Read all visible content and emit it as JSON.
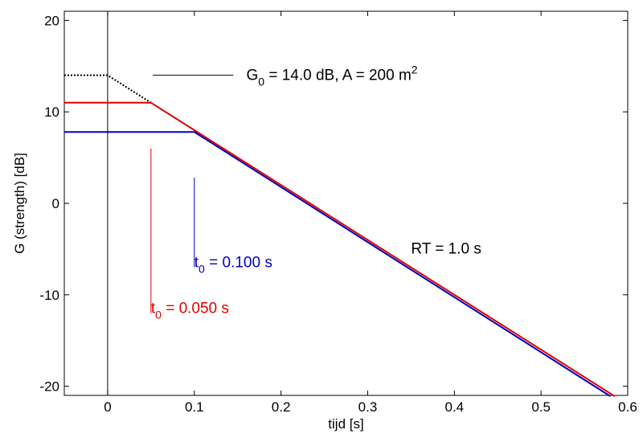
{
  "chart_data": {
    "type": "line",
    "title": "",
    "xlabel": "tijd  [s]",
    "ylabel": "G (strength) [dB]",
    "xlim": [
      -0.05,
      0.6
    ],
    "ylim": [
      -21,
      21
    ],
    "grid": false,
    "x_ticks": [
      0,
      0.1,
      0.2,
      0.3,
      0.4,
      0.5,
      0.6
    ],
    "x_tick_labels": [
      "0",
      "0.1",
      "0.2",
      "0.3",
      "0.4",
      "0.5",
      "0.6"
    ],
    "y_ticks": [
      -20,
      -10,
      0,
      10,
      20
    ],
    "y_tick_labels": [
      "-20",
      "-10",
      "0",
      "10",
      "20"
    ],
    "series": [
      {
        "color": "#000000",
        "style": "dotted",
        "x": [
          -0.05,
          0.0,
          0.05
        ],
        "y": [
          14.0,
          14.0,
          11.0
        ]
      },
      {
        "color": "#e00000",
        "style": "solid",
        "x": [
          -0.05,
          0.05,
          0.585
        ],
        "y": [
          11.0,
          11.0,
          -21.1
        ]
      },
      {
        "color": "#0000c0",
        "style": "solid",
        "x": [
          -0.05,
          0.1,
          0.58
        ],
        "y": [
          7.8,
          7.8,
          -21.1
        ]
      }
    ],
    "markers": [
      {
        "color": "#000000",
        "x": [
          0.0,
          0.0
        ],
        "y": [
          -21,
          21
        ]
      },
      {
        "color": "#e00000",
        "x": [
          0.05,
          0.05
        ],
        "y": [
          -12,
          6
        ]
      },
      {
        "color": "#0000c0",
        "x": [
          0.1,
          0.1
        ],
        "y": [
          -7,
          2.8
        ]
      },
      {
        "color": "#000000",
        "x": [
          0.052,
          0.145
        ],
        "y": [
          14.0,
          14.0
        ]
      }
    ],
    "annotations": {
      "g0_label": {
        "main": "G",
        "sub": "0",
        "rest": " = 14.0 dB,     A = 200 m",
        "sup": "2",
        "x": 0.16,
        "y": 13.5,
        "color": "#000000"
      },
      "rt_label": {
        "text": "RT = 1.0 s",
        "x": 0.35,
        "y": -5.5,
        "color": "#000000"
      },
      "t0_blue": {
        "main": "t",
        "sub": "0",
        "rest": " =  0.100 s",
        "x": 0.1,
        "y": -7.0,
        "color": "#0000c0"
      },
      "t0_red": {
        "main": "t",
        "sub": "0",
        "rest": " =  0.050 s",
        "x": 0.05,
        "y": -12.0,
        "color": "#e00000"
      }
    }
  }
}
